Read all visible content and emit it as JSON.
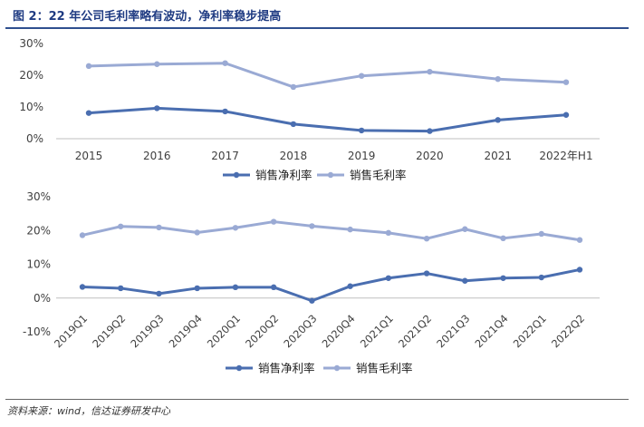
{
  "figure": {
    "title": "图 2：22 年公司毛利率略有波动，净利率稳步提高",
    "source": "资料来源：wind，信达证券研发中心"
  },
  "colors": {
    "net_margin": "#4a6eb0",
    "gross_margin": "#9aaad4",
    "axis": "#bfbfbf",
    "text": "#404040"
  },
  "chart_data": [
    {
      "type": "line",
      "categories": [
        "2015",
        "2016",
        "2017",
        "2018",
        "2019",
        "2020",
        "2021",
        "2022年H1"
      ],
      "ylim": [
        0,
        30
      ],
      "yticks": [
        "0%",
        "10%",
        "20%",
        "30%"
      ],
      "grid": false,
      "legend_position": "bottom-center",
      "series": [
        {
          "name": "销售净利率",
          "values": [
            8.1,
            9.6,
            8.6,
            4.6,
            2.6,
            2.4,
            5.9,
            7.5
          ]
        },
        {
          "name": "销售毛利率",
          "values": [
            22.9,
            23.5,
            23.8,
            16.3,
            19.8,
            21.1,
            18.8,
            17.8
          ]
        }
      ]
    },
    {
      "type": "line",
      "categories": [
        "2019Q1",
        "2019Q2",
        "2019Q3",
        "2019Q4",
        "2020Q1",
        "2020Q2",
        "2020Q3",
        "2020Q4",
        "2021Q1",
        "2021Q2",
        "2021Q3",
        "2021Q4",
        "2022Q1",
        "2022Q2"
      ],
      "ylim": [
        -10,
        30
      ],
      "yticks": [
        "-10%",
        "0%",
        "10%",
        "20%",
        "30%"
      ],
      "grid": false,
      "legend_position": "bottom-center",
      "series": [
        {
          "name": "销售净利率",
          "values": [
            3.3,
            2.9,
            1.3,
            2.9,
            3.2,
            3.2,
            -0.8,
            3.5,
            5.9,
            7.3,
            5.1,
            5.9,
            6.1,
            8.4
          ]
        },
        {
          "name": "销售毛利率",
          "values": [
            18.6,
            21.2,
            20.9,
            19.4,
            20.8,
            22.6,
            21.3,
            20.3,
            19.3,
            17.6,
            20.4,
            17.7,
            19.0,
            17.2
          ]
        }
      ]
    }
  ]
}
